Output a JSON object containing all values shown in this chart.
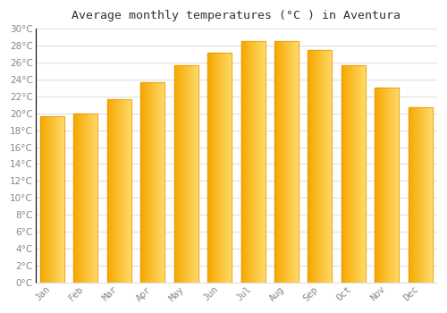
{
  "title": "Average monthly temperatures (°C ) in Aventura",
  "months": [
    "Jan",
    "Feb",
    "Mar",
    "Apr",
    "May",
    "Jun",
    "Jul",
    "Aug",
    "Sep",
    "Oct",
    "Nov",
    "Dec"
  ],
  "values": [
    19.7,
    20.0,
    21.7,
    23.7,
    25.7,
    27.2,
    28.5,
    28.5,
    27.5,
    25.7,
    23.0,
    20.7
  ],
  "bar_color_left": "#F5A800",
  "bar_color_right": "#FFD966",
  "bar_color_mid": "#FFBB20",
  "ylim": [
    0,
    30
  ],
  "ytick_step": 2,
  "background_color": "#ffffff",
  "plot_bg_color": "#ffffff",
  "grid_color": "#e0e0e8",
  "title_fontsize": 9.5,
  "tick_fontsize": 7.5,
  "title_font": "monospace",
  "tick_font": "monospace"
}
